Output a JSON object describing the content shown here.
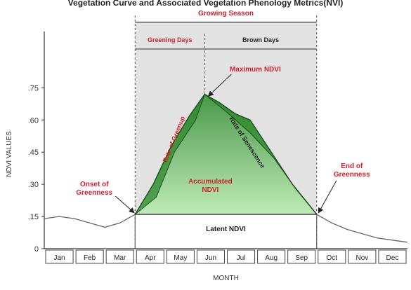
{
  "title": "Vegetation Curve and Associated Vegetation Phenology Metrics(NVI)",
  "labels": {
    "growing_season": "Growing Season",
    "greening_days": "Greening Days",
    "brown_days": "Brown Days",
    "maximum_ndvi": "Maximum NDVI",
    "onset_line1": "Onset of",
    "onset_line2": "Greenness",
    "end_line1": "End of",
    "end_line2": "Greenness",
    "rate_greenup": "Rate of Greenup",
    "rate_senescence": "Rate of Senescence",
    "accumulated_line1": "Accumulated",
    "accumulated_line2": "NDVI",
    "latent_ndvi": "Latent NDVI"
  },
  "colors": {
    "red_label": "#d21f2b",
    "green_dark": "#1f7a1f",
    "green_light": "#9ee08a",
    "season_band": "#e2e2e2"
  },
  "chart_data": {
    "type": "line",
    "title": "Vegetation Curve and Associated Vegetation Phenology Metrics(NVI)",
    "xlabel": "MONTH",
    "ylabel": "NDVI VALUES",
    "categories": [
      "Jan",
      "Feb",
      "Mar",
      "Apr",
      "May",
      "Jun",
      "Jul",
      "Aug",
      "Sep",
      "Oct",
      "Nov",
      "Dec"
    ],
    "ytick_labels": [
      "0",
      ".15",
      ".30",
      ".45",
      ".60",
      ".75"
    ],
    "ylim": [
      0,
      0.8
    ],
    "baseline_curve": {
      "x": [
        0.0,
        0.5,
        1.0,
        1.5,
        2.0,
        2.5,
        3.0,
        9.0,
        9.5,
        10.0,
        10.5,
        11.0,
        11.5,
        12.0
      ],
      "y": [
        0.14,
        0.15,
        0.14,
        0.12,
        0.1,
        0.12,
        0.16,
        0.16,
        0.12,
        0.09,
        0.07,
        0.05,
        0.04,
        0.03
      ]
    },
    "season_curve_upper": {
      "x": [
        3.0,
        3.6,
        4.2,
        4.8,
        5.3,
        5.8,
        6.3,
        6.8,
        7.5,
        8.2,
        9.0
      ],
      "y": [
        0.16,
        0.3,
        0.48,
        0.62,
        0.72,
        0.68,
        0.63,
        0.6,
        0.45,
        0.3,
        0.16
      ]
    },
    "season_curve_lower": {
      "x": [
        3.0,
        3.7,
        4.3,
        5.0,
        5.3,
        6.0,
        6.8,
        7.6,
        8.3,
        9.0
      ],
      "y": [
        0.16,
        0.24,
        0.45,
        0.6,
        0.72,
        0.64,
        0.54,
        0.42,
        0.28,
        0.16
      ]
    },
    "onset": {
      "x": 3.0,
      "y": 0.16
    },
    "end": {
      "x": 9.0,
      "y": 0.16
    },
    "maximum": {
      "x": 5.3,
      "y": 0.72
    },
    "latent_level": 0.16,
    "grid": false
  }
}
